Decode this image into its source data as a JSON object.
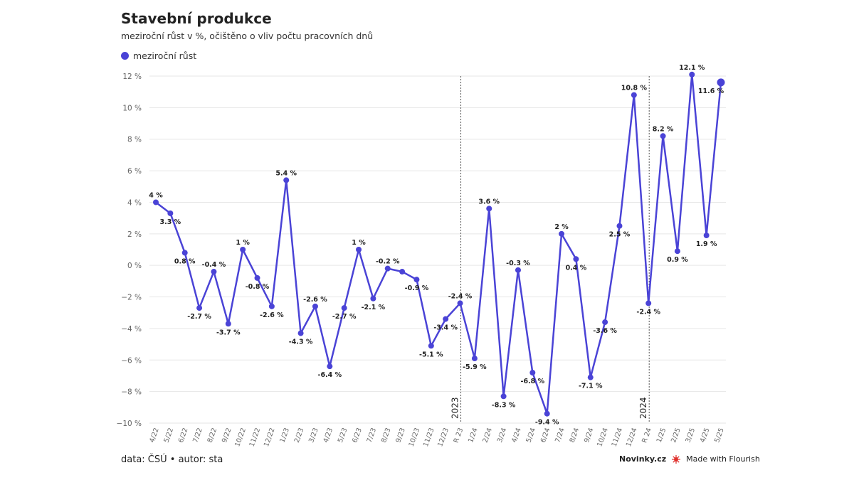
{
  "title": "Stavební produkce",
  "subtitle": "meziroční růst v %, očištěno o vliv počtu pracovních dnů",
  "legend_label": "meziroční růst",
  "footer": "data: ČSÚ • autor: sta",
  "brand": {
    "novinky": "Novinky.cz",
    "flourish": "Made with Flourish"
  },
  "colors": {
    "series": "#4a43d6",
    "grid": "#e6e6e6",
    "annotation": "#555555"
  },
  "chart_data": {
    "type": "line",
    "title": "Stavební produkce",
    "subtitle": "meziroční růst v %, očištěno o vliv počtu pracovních dnů",
    "ylim": [
      -10,
      12
    ],
    "yticks": [
      -10,
      -8,
      -6,
      -4,
      -2,
      0,
      2,
      4,
      6,
      8,
      10,
      12
    ],
    "ytick_labels": [
      "−10 %",
      "−8 %",
      "−6 %",
      "−4 %",
      "−2 %",
      "0 %",
      "2 %",
      "4 %",
      "6 %",
      "8 %",
      "10 %",
      "12 %"
    ],
    "grid": true,
    "categories": [
      "4/22",
      "5/22",
      "6/22",
      "7/22",
      "8/22",
      "9/22",
      "10/22",
      "11/22",
      "12/22",
      "1/23",
      "2/23",
      "3/23",
      "4/23",
      "5/23",
      "6/23",
      "7/23",
      "8/23",
      "9/23",
      "10/23",
      "11/23",
      "12/23",
      "R 23",
      "1/24",
      "2/24",
      "3/24",
      "4/24",
      "5/24",
      "6/24",
      "7/24",
      "8/24",
      "9/24",
      "10/24",
      "11/24",
      "12/24",
      "R 24",
      "1/25",
      "2/25",
      "3/25",
      "4/25",
      "5/25"
    ],
    "series": [
      {
        "name": "meziroční růst",
        "values": [
          4,
          3.3,
          0.8,
          -2.7,
          -0.4,
          -3.7,
          1,
          -0.8,
          -2.6,
          5.4,
          -4.3,
          -2.6,
          -6.4,
          -2.7,
          1,
          -2.1,
          -0.2,
          -0.4,
          -0.9,
          -5.1,
          -3.4,
          -2.4,
          -5.9,
          3.6,
          -8.3,
          -0.3,
          -6.8,
          -9.4,
          2,
          0.4,
          -7.1,
          -3.6,
          2.5,
          10.8,
          -2.4,
          8.2,
          0.9,
          12.1,
          1.9,
          11.6
        ],
        "labels": [
          "4 %",
          "3.3 %",
          "0.8 %",
          "-2.7 %",
          "-0.4 %",
          "-3.7 %",
          "1 %",
          "-0.8 %",
          "-2.6 %",
          "5.4 %",
          "-4.3 %",
          "-2.6 %",
          "-6.4 %",
          "-2.7 %",
          "1 %",
          "-2.1 %",
          "-0.2 %",
          "",
          "-0.9 %",
          "-5.1 %",
          "-3.4 %",
          "-2.4 %",
          "-5.9 %",
          "3.6 %",
          "-8.3 %",
          "-0.3 %",
          "-6.8 %",
          "-9.4 %",
          "2 %",
          "0.4 %",
          "-7.1 %",
          "-3.6 %",
          "2.5 %",
          "10.8 %",
          "-2.4 %",
          "8.2 %",
          "0.9 %",
          "12.1 %",
          "1.9 %",
          "11.6 %"
        ]
      }
    ],
    "annotations": [
      {
        "category": "R 23",
        "text": "2023"
      },
      {
        "category": "R 24",
        "text": "2024"
      }
    ]
  }
}
